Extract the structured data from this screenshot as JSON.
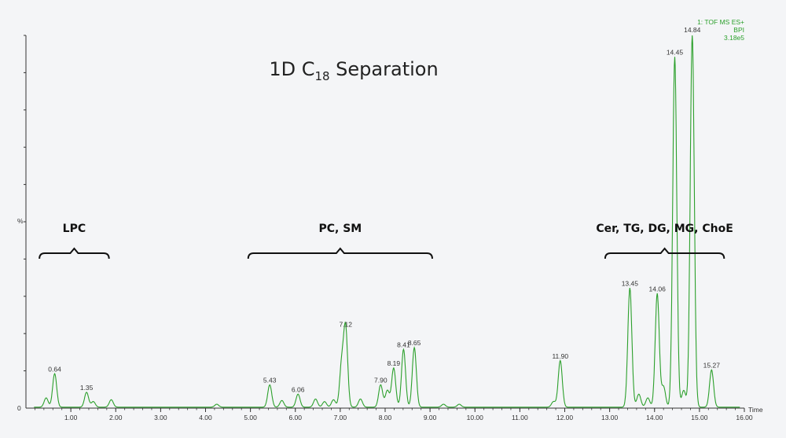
{
  "chart_data": {
    "type": "line",
    "title": "1D C",
    "title_subscript": "18",
    "title_suffix": " Separation",
    "xlabel": "Time",
    "ylabel": "%",
    "xlim": [
      0.0,
      16.0
    ],
    "ylim": [
      0,
      100
    ],
    "x_ticks": [
      "1.00",
      "2.00",
      "3.00",
      "4.00",
      "5.00",
      "6.00",
      "7.00",
      "8.00",
      "9.00",
      "10.00",
      "11.00",
      "12.00",
      "13.00",
      "14.00",
      "15.00",
      "16.00"
    ],
    "y_tick_zero": "0",
    "trace_color": "#2ca02c",
    "info_lines": [
      "1: TOF MS ES+",
      "BPI",
      "3.18e5"
    ],
    "groups": [
      {
        "label": "LPC",
        "x_start": 0.3,
        "x_end": 1.85
      },
      {
        "label": "PC, SM",
        "x_start": 4.95,
        "x_end": 9.05
      },
      {
        "label": "Cer, TG, DG, MG, ChoE",
        "x_start": 12.9,
        "x_end": 15.55
      }
    ],
    "peaks": [
      {
        "x": 0.64,
        "y": 9,
        "label": "0.64"
      },
      {
        "x": 1.35,
        "y": 4,
        "label": "1.35"
      },
      {
        "x": 5.43,
        "y": 6,
        "label": "5.43"
      },
      {
        "x": 6.06,
        "y": 3.5,
        "label": "6.06"
      },
      {
        "x": 7.12,
        "y": 21,
        "label": "7.12"
      },
      {
        "x": 7.9,
        "y": 6,
        "label": "7.90"
      },
      {
        "x": 8.19,
        "y": 10.5,
        "label": "8.19"
      },
      {
        "x": 8.41,
        "y": 15.5,
        "label": "8.41"
      },
      {
        "x": 8.65,
        "y": 16,
        "label": "8.65"
      },
      {
        "x": 11.9,
        "y": 12.5,
        "label": "11.90"
      },
      {
        "x": 13.45,
        "y": 32,
        "label": "13.45"
      },
      {
        "x": 14.06,
        "y": 30.5,
        "label": "14.06"
      },
      {
        "x": 14.45,
        "y": 94,
        "label": "14.45"
      },
      {
        "x": 14.84,
        "y": 100,
        "label": "14.84"
      },
      {
        "x": 15.27,
        "y": 10,
        "label": "15.27"
      }
    ],
    "minor_peaks": [
      {
        "x": 0.45,
        "y": 2.5
      },
      {
        "x": 1.5,
        "y": 1.5
      },
      {
        "x": 1.9,
        "y": 2
      },
      {
        "x": 4.25,
        "y": 0.8
      },
      {
        "x": 5.7,
        "y": 1.8
      },
      {
        "x": 6.45,
        "y": 2.2
      },
      {
        "x": 6.65,
        "y": 1.5
      },
      {
        "x": 6.85,
        "y": 2
      },
      {
        "x": 7.03,
        "y": 11
      },
      {
        "x": 7.45,
        "y": 2.2
      },
      {
        "x": 8.05,
        "y": 4.5
      },
      {
        "x": 9.3,
        "y": 0.8
      },
      {
        "x": 9.65,
        "y": 0.8
      },
      {
        "x": 11.75,
        "y": 1.5
      },
      {
        "x": 13.65,
        "y": 3.5
      },
      {
        "x": 13.85,
        "y": 2.5
      },
      {
        "x": 14.2,
        "y": 5.5
      },
      {
        "x": 14.65,
        "y": 4.5
      }
    ]
  }
}
